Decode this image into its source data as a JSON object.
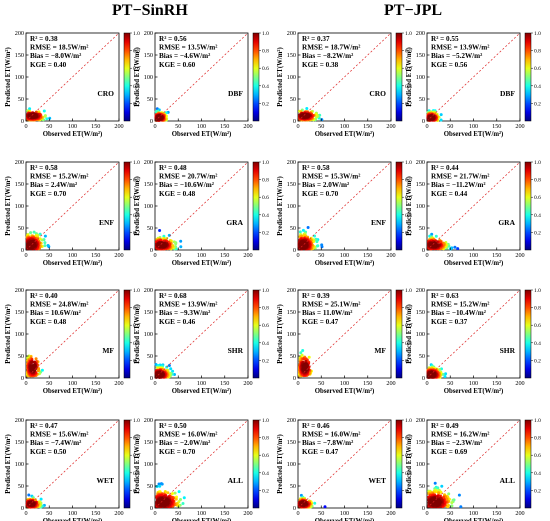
{
  "titles": {
    "left": "PT−SinRH",
    "right": "PT−JPL"
  },
  "chart_data": [
    {
      "type": "scatter",
      "group": "PT−SinRH",
      "land_cover": "CRO",
      "stats": [
        "R² = 0.38",
        "RMSE = 18.5W/m²",
        "Bias = −8.0W/m²",
        "KGE = 0.40"
      ],
      "xlabel": "Observed ET(W/m²)",
      "ylabel": "Predicted ET(W/m²)",
      "xlim": [
        0,
        200
      ],
      "ylim": [
        0,
        200
      ],
      "xticks": [
        0,
        50,
        100,
        150,
        200
      ],
      "yticks": [
        0,
        50,
        100,
        150,
        200
      ],
      "colorbar": {
        "ticks": [
          "0.2",
          "0.4",
          "0.6",
          "0.8",
          "1.0"
        ]
      },
      "density": {
        "center": [
          15,
          12
        ],
        "spread": [
          30,
          14
        ],
        "extent": [
          110,
          75
        ]
      }
    },
    {
      "type": "scatter",
      "group": "PT−SinRH",
      "land_cover": "DBF",
      "stats": [
        "R² = 0.56",
        "RMSE = 13.5W/m²",
        "Bias = −4.6W/m²",
        "KGE = 0.60"
      ],
      "xlabel": "Observed ET(W/m²)",
      "ylabel": "Predicted ET(W/m²)",
      "xlim": [
        0,
        200
      ],
      "ylim": [
        0,
        200
      ],
      "xticks": [
        0,
        50,
        100,
        150,
        200
      ],
      "yticks": [
        0,
        50,
        100,
        150,
        200
      ],
      "colorbar": {
        "ticks": [
          "0.2",
          "0.4",
          "0.6",
          "0.8",
          "1.0"
        ]
      },
      "density": {
        "center": [
          10,
          8
        ],
        "spread": [
          18,
          14
        ],
        "extent": [
          80,
          70
        ]
      }
    },
    {
      "type": "scatter",
      "group": "PT−JPL",
      "land_cover": "CRO",
      "stats": [
        "R² = 0.37",
        "RMSE = 18.7W/m²",
        "Bias = −8.2W/m²",
        "KGE = 0.38"
      ],
      "xlabel": "Observed ET(W/m²)",
      "ylabel": "Predicted ET(W/m²)",
      "xlim": [
        0,
        200
      ],
      "ylim": [
        0,
        200
      ],
      "xticks": [
        0,
        50,
        100,
        150,
        200
      ],
      "yticks": [
        0,
        50,
        100,
        150,
        200
      ],
      "colorbar": {
        "ticks": [
          "0.2",
          "0.4",
          "0.6",
          "0.8",
          "1.0"
        ]
      },
      "density": {
        "center": [
          15,
          12
        ],
        "spread": [
          30,
          14
        ],
        "extent": [
          110,
          75
        ]
      }
    },
    {
      "type": "scatter",
      "group": "PT−JPL",
      "land_cover": "DBF",
      "stats": [
        "R² = 0.55",
        "RMSE = 13.9W/m²",
        "Bias = −5.2W/m²",
        "KGE = 0.56"
      ],
      "xlabel": "Observed ET(W/m²)",
      "ylabel": "Predicted ET(W/m²)",
      "xlim": [
        0,
        200
      ],
      "ylim": [
        0,
        200
      ],
      "xticks": [
        0,
        50,
        100,
        150,
        200
      ],
      "yticks": [
        0,
        50,
        100,
        150,
        200
      ],
      "colorbar": {
        "ticks": [
          "0.2",
          "0.4",
          "0.6",
          "0.8",
          "1.0"
        ]
      },
      "density": {
        "center": [
          10,
          8
        ],
        "spread": [
          18,
          14
        ],
        "extent": [
          80,
          70
        ]
      }
    },
    {
      "type": "scatter",
      "group": "PT−SinRH",
      "land_cover": "ENF",
      "stats": [
        "R² = 0.58",
        "RMSE = 15.2W/m²",
        "Bias = 2.4W/m²",
        "KGE = 0.70"
      ],
      "xlabel": "Observed ET(W/m²)",
      "ylabel": "Predicted ET(W/m²)",
      "xlim": [
        0,
        200
      ],
      "ylim": [
        0,
        200
      ],
      "xticks": [
        0,
        50,
        100,
        150,
        200
      ],
      "yticks": [
        0,
        50,
        100,
        150,
        200
      ],
      "colorbar": {
        "ticks": [
          "0.2",
          "0.4",
          "0.6",
          "0.8",
          "1.0"
        ]
      },
      "density": {
        "center": [
          12,
          12
        ],
        "spread": [
          28,
          28
        ],
        "extent": [
          95,
          125
        ]
      }
    },
    {
      "type": "scatter",
      "group": "PT−SinRH",
      "land_cover": "GRA",
      "stats": [
        "R² = 0.48",
        "RMSE = 20.7W/m²",
        "Bias = −10.6W/m²",
        "KGE = 0.48"
      ],
      "xlabel": "Observed ET(W/m²)",
      "ylabel": "Predicted ET(W/m²)",
      "xlim": [
        0,
        200
      ],
      "ylim": [
        0,
        200
      ],
      "xticks": [
        0,
        50,
        100,
        150,
        200
      ],
      "yticks": [
        0,
        50,
        100,
        150,
        200
      ],
      "colorbar": {
        "ticks": [
          "0.2",
          "0.4",
          "0.6",
          "0.8",
          "1.0"
        ]
      },
      "density": {
        "center": [
          15,
          12
        ],
        "spread": [
          32,
          18
        ],
        "extent": [
          130,
          80
        ]
      }
    },
    {
      "type": "scatter",
      "group": "PT−JPL",
      "land_cover": "ENF",
      "stats": [
        "R² = 0.58",
        "RMSE = 15.3W/m²",
        "Bias = 2.0W/m²",
        "KGE = 0.70"
      ],
      "xlabel": "Observed ET(W/m²)",
      "ylabel": "Predicted ET(W/m²)",
      "xlim": [
        0,
        200
      ],
      "ylim": [
        0,
        200
      ],
      "xticks": [
        0,
        50,
        100,
        150,
        200
      ],
      "yticks": [
        0,
        50,
        100,
        150,
        200
      ],
      "colorbar": {
        "ticks": [
          "0.2",
          "0.4",
          "0.6",
          "0.8",
          "1.0"
        ]
      },
      "density": {
        "center": [
          12,
          12
        ],
        "spread": [
          28,
          28
        ],
        "extent": [
          95,
          125
        ]
      }
    },
    {
      "type": "scatter",
      "group": "PT−JPL",
      "land_cover": "GRA",
      "stats": [
        "R² = 0.44",
        "RMSE = 21.7W/m²",
        "Bias = −11.2W/m²",
        "KGE = 0.44"
      ],
      "xlabel": "Observed ET(W/m²)",
      "ylabel": "Predicted ET(W/m²)",
      "xlim": [
        0,
        200
      ],
      "ylim": [
        0,
        200
      ],
      "xticks": [
        0,
        50,
        100,
        150,
        200
      ],
      "yticks": [
        0,
        50,
        100,
        150,
        200
      ],
      "colorbar": {
        "ticks": [
          "0.2",
          "0.4",
          "0.6",
          "0.8",
          "1.0"
        ]
      },
      "density": {
        "center": [
          15,
          12
        ],
        "spread": [
          32,
          18
        ],
        "extent": [
          130,
          80
        ]
      }
    },
    {
      "type": "scatter",
      "group": "PT−SinRH",
      "land_cover": "MF",
      "stats": [
        "R² = 0.40",
        "RMSE = 24.8W/m²",
        "Bias = 10.6W/m²",
        "KGE = 0.48"
      ],
      "xlabel": "Observed ET(W/m²)",
      "ylabel": "Predicted ET(W/m²)",
      "xlim": [
        0,
        200
      ],
      "ylim": [
        0,
        200
      ],
      "xticks": [
        0,
        50,
        100,
        150,
        200
      ],
      "yticks": [
        0,
        50,
        100,
        150,
        200
      ],
      "colorbar": {
        "ticks": [
          "0.2",
          "0.4",
          "0.6",
          "0.8",
          "1.0"
        ]
      },
      "density": {
        "center": [
          15,
          25
        ],
        "spread": [
          18,
          35
        ],
        "extent": [
          80,
          120
        ]
      }
    },
    {
      "type": "scatter",
      "group": "PT−SinRH",
      "land_cover": "SHR",
      "stats": [
        "R² = 0.68",
        "RMSE = 13.9W/m²",
        "Bias = −9.3W/m²",
        "KGE = 0.46"
      ],
      "xlabel": "Observed ET(W/m²)",
      "ylabel": "Predicted ET(W/m²)",
      "xlim": [
        0,
        200
      ],
      "ylim": [
        0,
        200
      ],
      "xticks": [
        0,
        50,
        100,
        150,
        200
      ],
      "yticks": [
        0,
        50,
        100,
        150,
        200
      ],
      "colorbar": {
        "ticks": [
          "0.2",
          "0.4",
          "0.6",
          "0.8",
          "1.0"
        ]
      },
      "density": {
        "center": [
          10,
          8
        ],
        "spread": [
          25,
          18
        ],
        "extent": [
          100,
          90
        ]
      }
    },
    {
      "type": "scatter",
      "group": "PT−JPL",
      "land_cover": "MF",
      "stats": [
        "R² = 0.39",
        "RMSE = 25.1W/m²",
        "Bias = 11.0W/m²",
        "KGE = 0.47"
      ],
      "xlabel": "Observed ET(W/m²)",
      "ylabel": "Predicted ET(W/m²)",
      "xlim": [
        0,
        200
      ],
      "ylim": [
        0,
        200
      ],
      "xticks": [
        0,
        50,
        100,
        150,
        200
      ],
      "yticks": [
        0,
        50,
        100,
        150,
        200
      ],
      "colorbar": {
        "ticks": [
          "0.2",
          "0.4",
          "0.6",
          "0.8",
          "1.0"
        ]
      },
      "density": {
        "center": [
          15,
          25
        ],
        "spread": [
          18,
          35
        ],
        "extent": [
          80,
          120
        ]
      }
    },
    {
      "type": "scatter",
      "group": "PT−JPL",
      "land_cover": "SHR",
      "stats": [
        "R² = 0.63",
        "RMSE = 15.2W/m²",
        "Bias = −10.4W/m²",
        "KGE = 0.37"
      ],
      "xlabel": "Observed ET(W/m²)",
      "ylabel": "Predicted ET(W/m²)",
      "xlim": [
        0,
        200
      ],
      "ylim": [
        0,
        200
      ],
      "xticks": [
        0,
        50,
        100,
        150,
        200
      ],
      "yticks": [
        0,
        50,
        100,
        150,
        200
      ],
      "colorbar": {
        "ticks": [
          "0.2",
          "0.4",
          "0.6",
          "0.8",
          "1.0"
        ]
      },
      "density": {
        "center": [
          10,
          8
        ],
        "spread": [
          25,
          18
        ],
        "extent": [
          100,
          90
        ]
      }
    },
    {
      "type": "scatter",
      "group": "PT−SinRH",
      "land_cover": "WET",
      "stats": [
        "R² = 0.47",
        "RMSE = 15.6W/m²",
        "Bias = −7.4W/m²",
        "KGE = 0.50"
      ],
      "xlabel": "Observed ET(W/m²)",
      "ylabel": "Predicted ET(W/m²)",
      "xlim": [
        0,
        200
      ],
      "ylim": [
        0,
        200
      ],
      "xticks": [
        0,
        50,
        100,
        150,
        200
      ],
      "yticks": [
        0,
        50,
        100,
        150,
        200
      ],
      "colorbar": {
        "ticks": [
          "0.2",
          "0.4",
          "0.6",
          "0.8",
          "1.0"
        ]
      },
      "density": {
        "center": [
          12,
          10
        ],
        "spread": [
          22,
          14
        ],
        "extent": [
          90,
          60
        ]
      }
    },
    {
      "type": "scatter",
      "group": "PT−SinRH",
      "land_cover": "ALL",
      "stats": [
        "R² = 0.50",
        "RMSE = 16.0W/m²",
        "Bias = −2.0W/m²",
        "KGE = 0.70"
      ],
      "xlabel": "Observed ET(W/m²)",
      "ylabel": "Predicted ET(W/m²)",
      "xlim": [
        0,
        200
      ],
      "ylim": [
        0,
        200
      ],
      "xticks": [
        0,
        50,
        100,
        150,
        200
      ],
      "yticks": [
        0,
        50,
        100,
        150,
        200
      ],
      "colorbar": {
        "ticks": [
          "0.2",
          "0.4",
          "0.6",
          "0.8",
          "1.0"
        ]
      },
      "density": {
        "center": [
          18,
          14
        ],
        "spread": [
          40,
          30
        ],
        "extent": [
          140,
          130
        ]
      }
    },
    {
      "type": "scatter",
      "group": "PT−JPL",
      "land_cover": "WET",
      "stats": [
        "R² = 0.46",
        "RMSE = 16.0W/m²",
        "Bias = −7.8W/m²",
        "KGE = 0.47"
      ],
      "xlabel": "Observed ET(W/m²)",
      "ylabel": "Predicted ET(W/m²)",
      "xlim": [
        0,
        200
      ],
      "ylim": [
        0,
        200
      ],
      "xticks": [
        0,
        50,
        100,
        150,
        200
      ],
      "yticks": [
        0,
        50,
        100,
        150,
        200
      ],
      "colorbar": {
        "ticks": [
          "0.2",
          "0.4",
          "0.6",
          "0.8",
          "1.0"
        ]
      },
      "density": {
        "center": [
          12,
          10
        ],
        "spread": [
          22,
          14
        ],
        "extent": [
          90,
          60
        ]
      }
    },
    {
      "type": "scatter",
      "group": "PT−JPL",
      "land_cover": "ALL",
      "stats": [
        "R² = 0.49",
        "RMSE = 16.2W/m²",
        "Bias = −2.3W/m²",
        "KGE = 0.69"
      ],
      "xlabel": "Observed ET(W/m²)",
      "ylabel": "Predicted ET(W/m²)",
      "xlim": [
        0,
        200
      ],
      "ylim": [
        0,
        200
      ],
      "xticks": [
        0,
        50,
        100,
        150,
        200
      ],
      "yticks": [
        0,
        50,
        100,
        150,
        200
      ],
      "colorbar": {
        "ticks": [
          "0.2",
          "0.4",
          "0.6",
          "0.8",
          "1.0"
        ]
      },
      "density": {
        "center": [
          18,
          14
        ],
        "spread": [
          40,
          30
        ],
        "extent": [
          140,
          130
        ]
      }
    }
  ]
}
